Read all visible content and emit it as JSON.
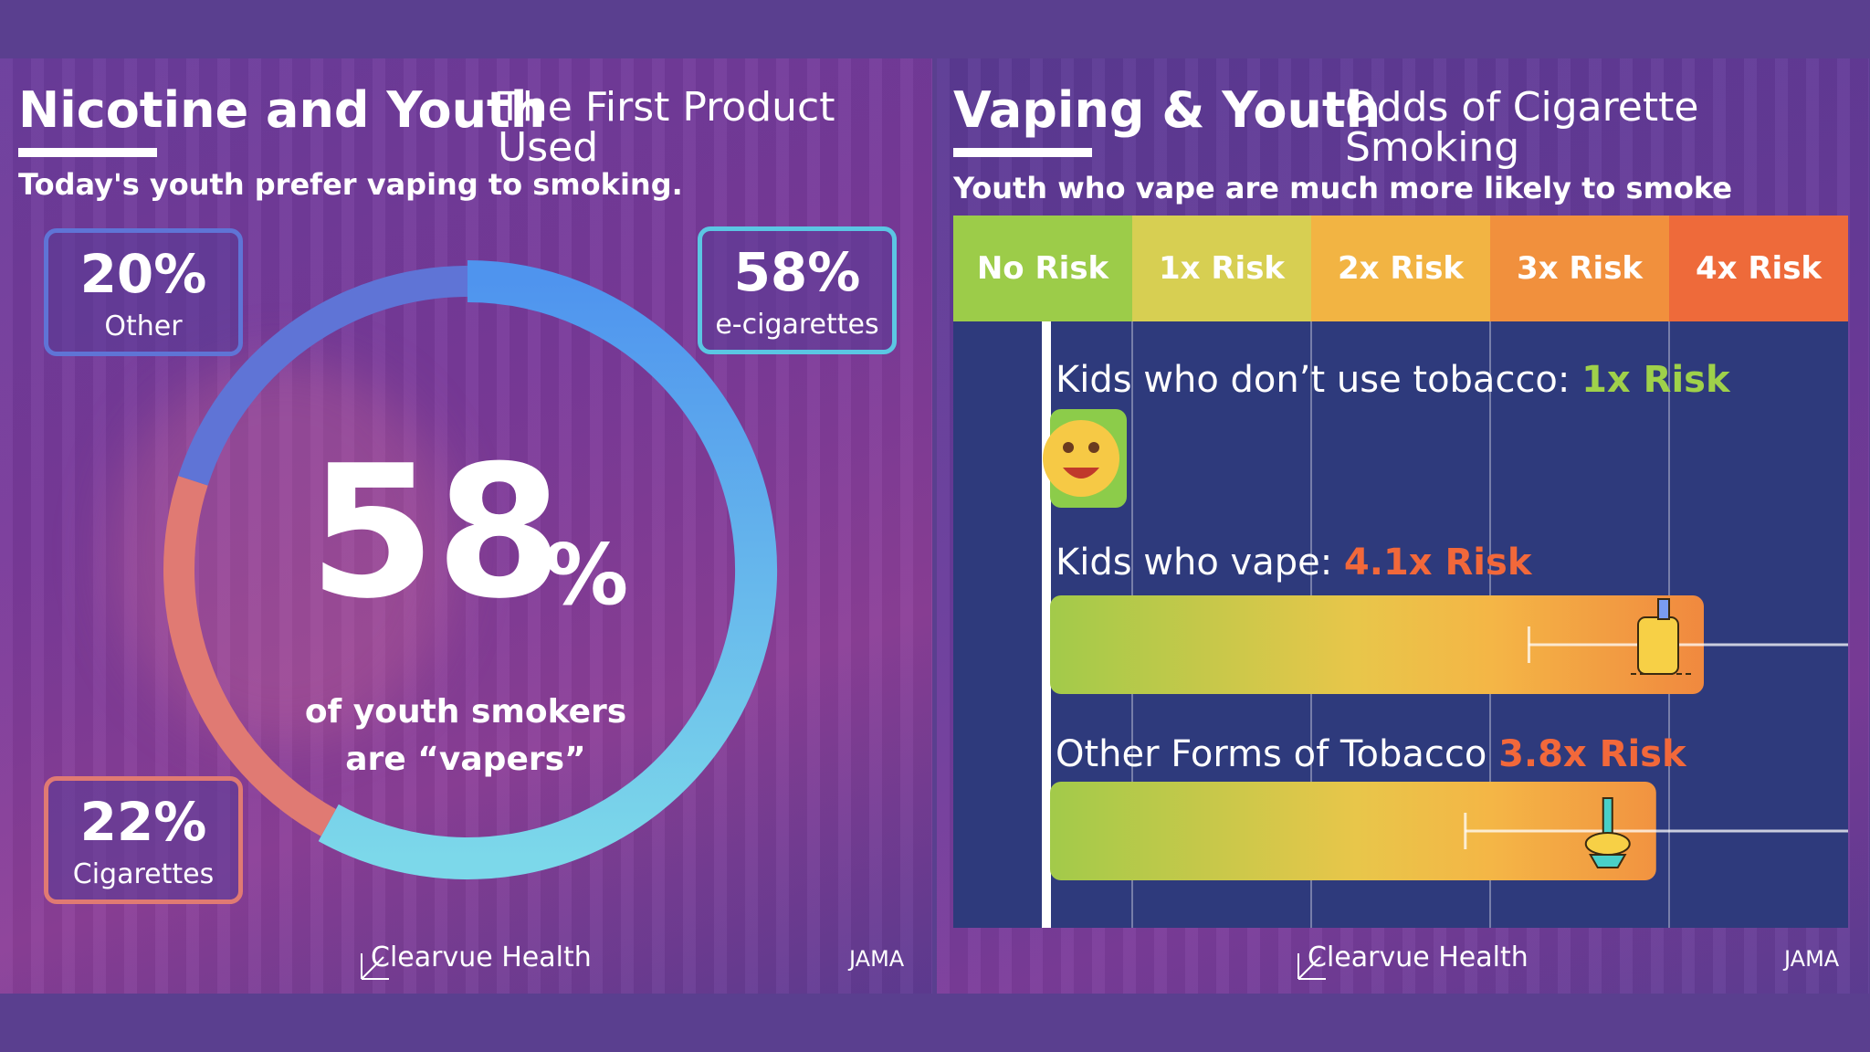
{
  "left": {
    "title": "Nicotine and Youth",
    "subtitle_title": "The First Product Used",
    "tagline": "Today's youth prefer vaping to smoking.",
    "stats": {
      "other": {
        "pct": "20%",
        "label": "Other",
        "color": "#5f74d6"
      },
      "ecig": {
        "pct": "58%",
        "label": "e-cigarettes",
        "color": "#5bc6e3"
      },
      "cig": {
        "pct": "22%",
        "label": "Cigarettes",
        "color": "#e07a73"
      }
    },
    "center": {
      "number": "58",
      "percent_sign": "%",
      "line1": "of youth smokers",
      "line2": "are “vapers”"
    },
    "brand": "Clearvue Health",
    "source": "JAMA"
  },
  "right": {
    "title": "Vaping & Youth",
    "subtitle_title": "Odds of Cigarette Smoking",
    "tagline": "Youth who vape are much more likely to smoke",
    "risk_levels": [
      {
        "label": "No Risk",
        "color": "#9ccc49"
      },
      {
        "label": "1x Risk",
        "color": "#d7cf52"
      },
      {
        "label": "2x Risk",
        "color": "#f2b443"
      },
      {
        "label": "3x Risk",
        "color": "#f1903d"
      },
      {
        "label": "4x Risk",
        "color": "#ee6a3a"
      }
    ],
    "bars": [
      {
        "label": "Kids who don’t use tobacco: ",
        "value_text": "1x Risk",
        "value_color": "#9fd14a",
        "icon": "smiley-icon"
      },
      {
        "label": "Kids who vape: ",
        "value_text": "4.1x Risk",
        "value_color": "#f2683a",
        "icon": "vape-device-icon"
      },
      {
        "label": "Other Forms of Tobacco ",
        "value_text": "3.8x Risk",
        "value_color": "#f2683a",
        "icon": "hookah-icon"
      }
    ],
    "brand": "Clearvue Health",
    "source": "JAMA"
  },
  "chart_data": [
    {
      "type": "pie",
      "title": "Nicotine and Youth",
      "subtitle": "The First Product Used",
      "categories": [
        "e-cigarettes",
        "Cigarettes",
        "Other"
      ],
      "values": [
        58,
        22,
        20
      ],
      "colors": [
        "#5aa8f0",
        "#e07a73",
        "#5f74d6"
      ],
      "annotation": "58% of youth smokers are “vapers”"
    },
    {
      "type": "bar",
      "orientation": "horizontal",
      "title": "Vaping & Youth",
      "subtitle": "Odds of Cigarette Smoking",
      "categories": [
        "Kids who don’t use tobacco",
        "Kids who vape",
        "Other Forms of Tobacco"
      ],
      "values": [
        1,
        4.1,
        3.8
      ],
      "error_low": [
        null,
        3.0,
        2.6
      ],
      "error_high": [
        null,
        5.5,
        5.5
      ],
      "xlim": [
        0,
        4.5
      ],
      "x_scale_labels": [
        "No Risk",
        "1x Risk",
        "2x Risk",
        "3x Risk",
        "4x Risk"
      ],
      "grid": true
    }
  ]
}
